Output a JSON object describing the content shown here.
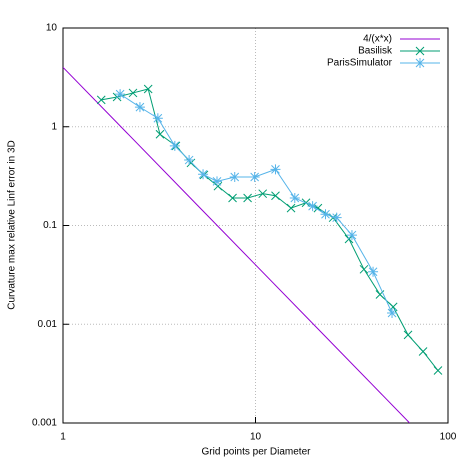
{
  "chart_data": {
    "type": "line",
    "xlabel": "Grid points per Diameter",
    "ylabel": "Curvature max relative Linf error in 3D",
    "xlog": true,
    "ylog": true,
    "grid": true,
    "legend": "upper right",
    "xlim": [
      1,
      100
    ],
    "xticks": [
      1,
      10,
      100
    ],
    "ylim": [
      0.001,
      10
    ],
    "yticks": [
      0.001,
      0.01,
      0.1,
      1,
      10
    ],
    "series": [
      {
        "name": "4/(x*x)",
        "color": "#9400d3",
        "marker": "none",
        "x": [
          1,
          2,
          5,
          10,
          20,
          40,
          63.2
        ],
        "values": [
          4,
          1,
          0.16,
          0.04,
          0.01,
          0.0025,
          0.001
        ]
      },
      {
        "name": "Basilisk",
        "color": "#009e73",
        "marker": "x",
        "x": [
          1.58,
          1.91,
          2.31,
          2.77,
          3.19,
          3.86,
          4.62,
          5.4,
          6.38,
          7.6,
          9.1,
          10.9,
          12.7,
          15.3,
          18.3,
          21.1,
          25.3,
          30.6,
          36.6,
          44.3,
          51.9,
          62.0,
          74.2,
          88.7
        ],
        "values": [
          1.87,
          2.0,
          2.2,
          2.41,
          0.84,
          0.64,
          0.43,
          0.325,
          0.25,
          0.19,
          0.19,
          0.21,
          0.2,
          0.15,
          0.17,
          0.15,
          0.12,
          0.073,
          0.036,
          0.02,
          0.015,
          0.0078,
          0.0053,
          0.0034
        ]
      },
      {
        "name": "ParisSimulator",
        "color": "#56b4e9",
        "marker": "star",
        "x": [
          1.98,
          2.51,
          3.11,
          3.81,
          4.52,
          5.34,
          6.31,
          7.8,
          9.9,
          12.7,
          16.0,
          19.8,
          23.1,
          26.4,
          31.7,
          40.8,
          51.2
        ],
        "values": [
          2.14,
          1.58,
          1.22,
          0.64,
          0.46,
          0.33,
          0.28,
          0.31,
          0.31,
          0.37,
          0.19,
          0.157,
          0.13,
          0.12,
          0.08,
          0.034,
          0.013
        ]
      }
    ]
  }
}
